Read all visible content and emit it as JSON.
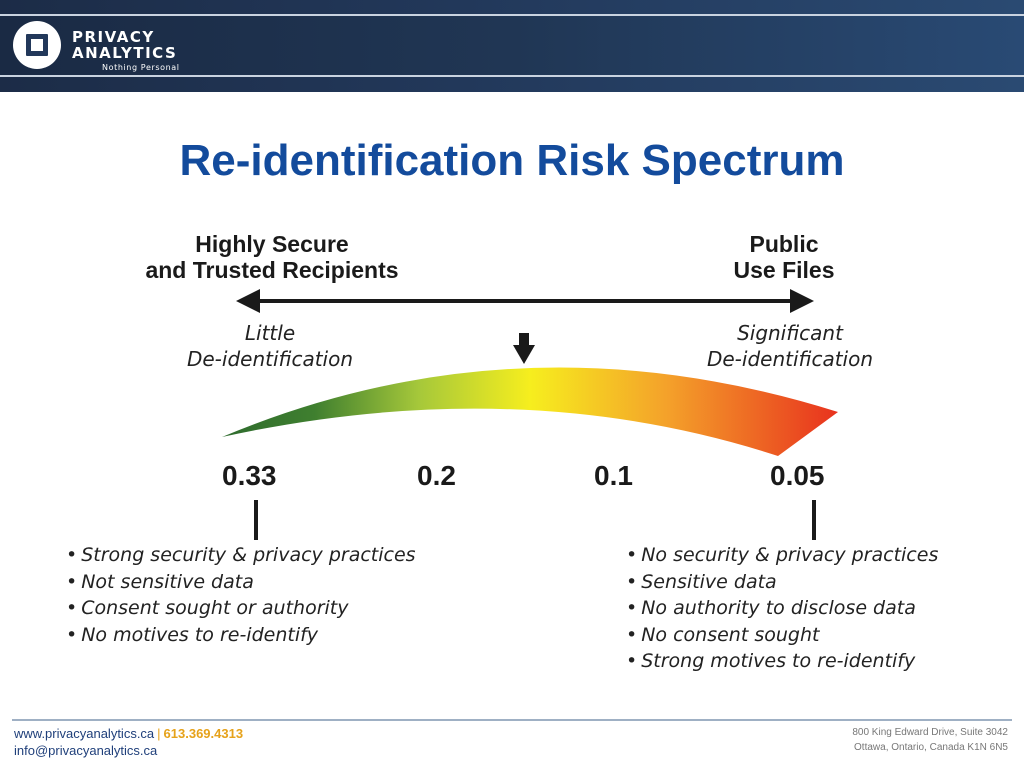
{
  "header": {
    "logo_line1": "PRIVACY",
    "logo_line2": "ANALYTICS",
    "logo_tagline": "Nothing Personal",
    "colors": {
      "banner": "#22385a",
      "banner_line": "#c9d3e0"
    }
  },
  "slide": {
    "title": "Re-identification Risk Spectrum",
    "title_color": "#134b9c"
  },
  "spectrum": {
    "left_heading": [
      "Highly Secure",
      "and Trusted Recipients"
    ],
    "right_heading": [
      "Public",
      "Use Files"
    ],
    "left_sub": [
      "Little",
      "De-identification"
    ],
    "right_sub": [
      "Significant",
      "De-identification"
    ],
    "ticks": [
      "0.33",
      "0.2",
      "0.1",
      "0.05"
    ],
    "gradient_colors": [
      "#2e6b2e",
      "#f4ec1e",
      "#e8351e"
    ],
    "left_list": [
      "Strong security & privacy practices",
      "Not sensitive data",
      "Consent sought or authority",
      "No motives to re-identify"
    ],
    "right_list": [
      "No security & privacy practices",
      "Sensitive data",
      "No authority to disclose data",
      "No consent sought",
      "Strong motives to re-identify"
    ]
  },
  "footer": {
    "website": "www.privacyanalytics.ca",
    "phone": "613.369.4313",
    "email": "info@privacyanalytics.ca",
    "address_line1": "800 King Edward Drive, Suite 3042",
    "address_line2": "Ottawa, Ontario, Canada  K1N 6N5"
  }
}
